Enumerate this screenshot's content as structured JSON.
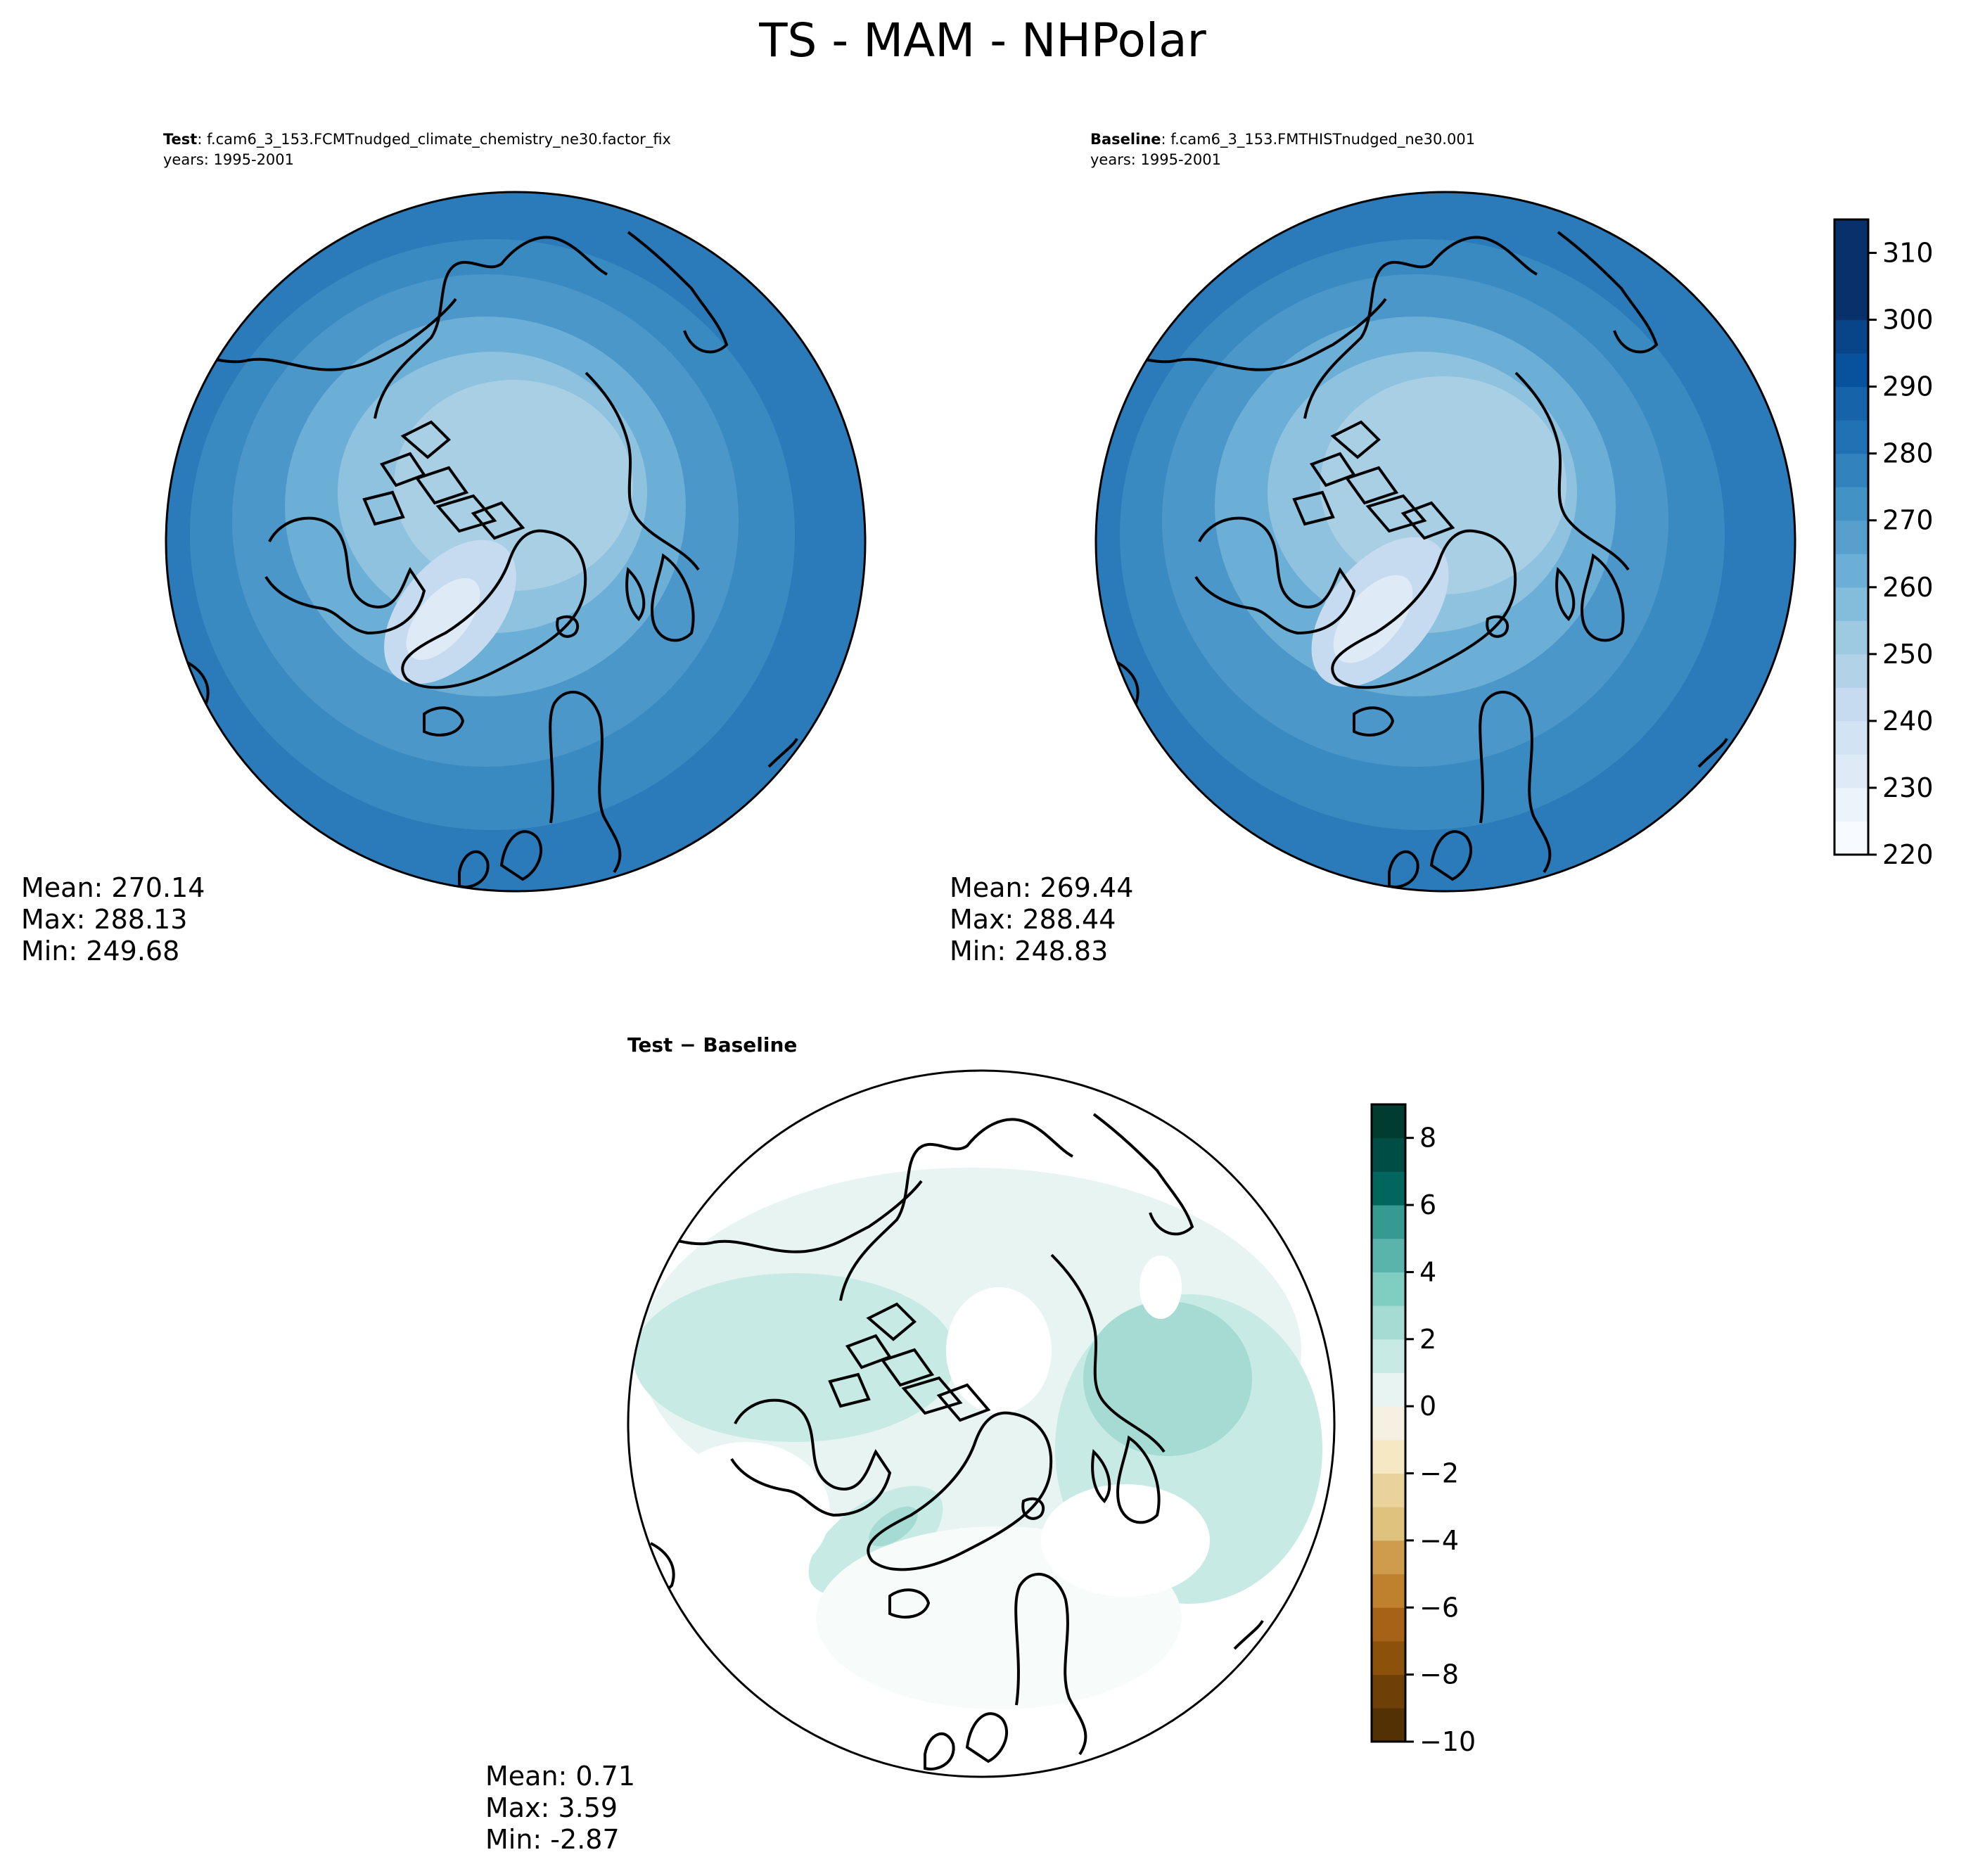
{
  "figure": {
    "title": "TS - MAM - NHPolar"
  },
  "panels": [
    {
      "id": "test",
      "label_bold": "Test",
      "label_rest": ": f.cam6_3_153.FCMTnudged_climate_chemistry_ne30.factor_fix",
      "years": "years: 1995-2001",
      "stats": [
        "Mean: 270.14",
        "Max: 288.13",
        "Min: 249.68"
      ],
      "field": "absolute"
    },
    {
      "id": "baseline",
      "label_bold": "Baseline",
      "label_rest": ": f.cam6_3_153.FMTHISTnudged_ne30.001",
      "years": "years: 1995-2001",
      "stats": [
        "Mean: 269.44",
        "Max: 288.44",
        "Min: 248.83"
      ],
      "field": "absolute"
    },
    {
      "id": "diff",
      "label_bold": "Test − Baseline",
      "label_rest": "",
      "years": "",
      "stats": [
        "Mean:  0.71",
        "Max:  3.59",
        "Min: -2.87"
      ],
      "field": "difference"
    }
  ],
  "colorbars": {
    "absolute": {
      "ticks": [
        "310",
        "300",
        "290",
        "280",
        "270",
        "260",
        "250",
        "240",
        "230",
        "220"
      ],
      "min": 220,
      "max": 315,
      "step": 5,
      "colors": [
        "#f7fbff",
        "#ebf3fb",
        "#deebf7",
        "#d2e3f3",
        "#c6dbef",
        "#b2d2e8",
        "#9ecae1",
        "#84bcdb",
        "#6baed6",
        "#57a0ce",
        "#4292c6",
        "#3282be",
        "#2171b5",
        "#1663aa",
        "#08519c",
        "#084488",
        "#08306b",
        "#08306b",
        "#08306b"
      ]
    },
    "difference": {
      "ticks": [
        "8",
        "6",
        "4",
        "2",
        "0",
        "−2",
        "−4",
        "−6",
        "−8",
        "−10"
      ],
      "min": -10,
      "max": 9,
      "step": 1,
      "colors": [
        "#543005",
        "#6e4007",
        "#8c510a",
        "#a66217",
        "#bf812d",
        "#cf9c4d",
        "#dfc27d",
        "#ead39a",
        "#f6e8c3",
        "#f5f0e1",
        "#e8f4f1",
        "#c7eae5",
        "#a5dbd3",
        "#80cdc1",
        "#5ab4ac",
        "#359a91",
        "#01665e",
        "#004d45",
        "#003c30"
      ]
    }
  }
}
